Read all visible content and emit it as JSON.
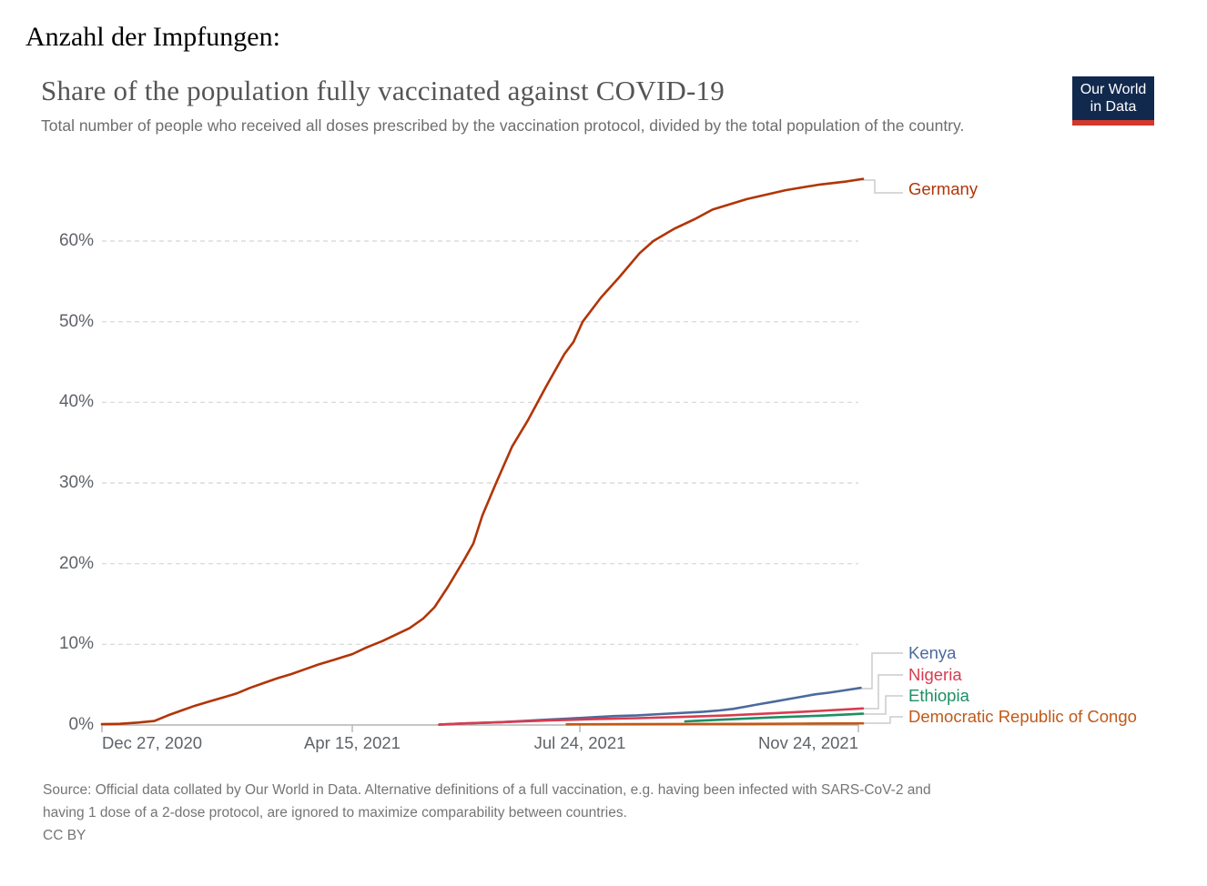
{
  "page": {
    "heading": "Anzahl der Impfungen:"
  },
  "chart": {
    "logo": {
      "line1": "Our World",
      "line2": "in Data",
      "bg_color": "#12294E",
      "stripe_color": "#D2382C"
    },
    "source_lines": [
      "Source: Official data collated by Our World in Data. Alternative definitions of a full vaccination, e.g. having been infected with SARS-CoV-2 and",
      "having 1 dose of a 2-dose protocol, are ignored to maximize comparability between countries."
    ],
    "license": "CC BY"
  },
  "chart_data": {
    "type": "line",
    "title": "Share of the population fully vaccinated against COVID-19",
    "subtitle": "Total number of people who received all doses prescribed by the vaccination protocol, divided by the total population of the country.",
    "grid": "dashed-horizontal",
    "legend_position": "right-of-line-ends",
    "x_axis": {
      "unit": "date",
      "range_days": [
        0,
        334
      ],
      "ticks": [
        {
          "label": "Dec 27, 2020",
          "day": 0
        },
        {
          "label": "Apr 15, 2021",
          "day": 109
        },
        {
          "label": "Jul 24, 2021",
          "day": 209
        },
        {
          "label": "Nov 24, 2021",
          "day": 332
        }
      ]
    },
    "y_axis": {
      "unit": "%",
      "range": [
        0,
        68
      ],
      "ticks": [
        {
          "label": "0%",
          "value": 0
        },
        {
          "label": "10%",
          "value": 10
        },
        {
          "label": "20%",
          "value": 20
        },
        {
          "label": "30%",
          "value": 30
        },
        {
          "label": "40%",
          "value": 40
        },
        {
          "label": "50%",
          "value": 50
        },
        {
          "label": "60%",
          "value": 60
        }
      ]
    },
    "series": [
      {
        "name": "Germany",
        "color": "#B13507",
        "end_value_pct": 67.7,
        "points": [
          [
            0,
            0.1
          ],
          [
            8,
            0.15
          ],
          [
            16,
            0.3
          ],
          [
            23,
            0.5
          ],
          [
            29,
            1.2
          ],
          [
            35,
            1.8
          ],
          [
            41,
            2.4
          ],
          [
            47,
            2.9
          ],
          [
            53,
            3.4
          ],
          [
            59,
            3.9
          ],
          [
            65,
            4.6
          ],
          [
            71,
            5.2
          ],
          [
            77,
            5.8
          ],
          [
            83,
            6.3
          ],
          [
            89,
            6.9
          ],
          [
            95,
            7.5
          ],
          [
            102,
            8.1
          ],
          [
            110,
            8.8
          ],
          [
            116,
            9.6
          ],
          [
            123,
            10.4
          ],
          [
            129,
            11.2
          ],
          [
            135,
            12.0
          ],
          [
            141,
            13.2
          ],
          [
            146,
            14.6
          ],
          [
            152,
            17.2
          ],
          [
            159,
            20.5
          ],
          [
            163,
            22.5
          ],
          [
            167,
            26.0
          ],
          [
            173,
            30.0
          ],
          [
            180,
            34.5
          ],
          [
            187,
            37.8
          ],
          [
            195,
            42.0
          ],
          [
            203,
            46.0
          ],
          [
            207,
            47.5
          ],
          [
            211,
            50.0
          ],
          [
            219,
            53.0
          ],
          [
            227,
            55.5
          ],
          [
            236,
            58.5
          ],
          [
            242,
            60.0
          ],
          [
            251,
            61.5
          ],
          [
            260,
            62.7
          ],
          [
            268,
            63.9
          ],
          [
            283,
            65.2
          ],
          [
            300,
            66.3
          ],
          [
            315,
            67.0
          ],
          [
            327,
            67.4
          ],
          [
            334,
            67.7
          ]
        ]
      },
      {
        "name": "Kenya",
        "color": "#4C6A9C",
        "end_value_pct": 4.6,
        "points": [
          [
            148,
            0.05
          ],
          [
            160,
            0.2
          ],
          [
            175,
            0.35
          ],
          [
            185,
            0.5
          ],
          [
            195,
            0.65
          ],
          [
            205,
            0.8
          ],
          [
            215,
            0.95
          ],
          [
            225,
            1.1
          ],
          [
            235,
            1.2
          ],
          [
            245,
            1.35
          ],
          [
            255,
            1.5
          ],
          [
            264,
            1.65
          ],
          [
            271,
            1.8
          ],
          [
            277,
            2.0
          ],
          [
            283,
            2.3
          ],
          [
            289,
            2.6
          ],
          [
            295,
            2.9
          ],
          [
            301,
            3.2
          ],
          [
            307,
            3.5
          ],
          [
            313,
            3.8
          ],
          [
            319,
            4.0
          ],
          [
            326,
            4.3
          ],
          [
            333,
            4.6
          ]
        ]
      },
      {
        "name": "Nigeria",
        "color": "#D73C50",
        "end_value_pct": 2.05,
        "points": [
          [
            148,
            0.05
          ],
          [
            160,
            0.2
          ],
          [
            175,
            0.35
          ],
          [
            195,
            0.55
          ],
          [
            215,
            0.72
          ],
          [
            235,
            0.85
          ],
          [
            255,
            1.0
          ],
          [
            275,
            1.2
          ],
          [
            295,
            1.45
          ],
          [
            315,
            1.75
          ],
          [
            334,
            2.05
          ]
        ]
      },
      {
        "name": "Ethiopia",
        "color": "#1D8F64",
        "end_value_pct": 1.4,
        "points": [
          [
            256,
            0.45
          ],
          [
            265,
            0.58
          ],
          [
            275,
            0.7
          ],
          [
            285,
            0.82
          ],
          [
            295,
            0.95
          ],
          [
            305,
            1.05
          ],
          [
            315,
            1.15
          ],
          [
            325,
            1.28
          ],
          [
            334,
            1.4
          ]
        ]
      },
      {
        "name": "Democratic Republic of Congo",
        "color": "#C05917",
        "end_value_pct": 0.2,
        "points": [
          [
            204,
            0.08
          ],
          [
            230,
            0.1
          ],
          [
            255,
            0.12
          ],
          [
            283,
            0.14
          ],
          [
            307,
            0.17
          ],
          [
            334,
            0.2
          ]
        ]
      }
    ]
  }
}
